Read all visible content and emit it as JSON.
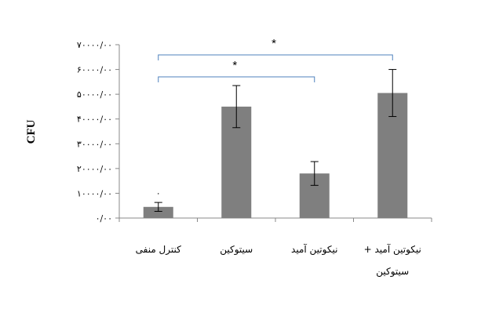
{
  "chart_data": {
    "type": "bar",
    "ylabel": "CFU",
    "ylim": [
      0,
      70000
    ],
    "y_ticks": [
      0,
      10000,
      20000,
      30000,
      40000,
      50000,
      60000,
      70000
    ],
    "y_tick_labels": [
      "۰/۰۰",
      "۱۰۰۰۰/۰۰",
      "۲۰۰۰۰/۰۰",
      "۳۰۰۰۰/۰۰",
      "۴۰۰۰۰/۰۰",
      "۵۰۰۰۰/۰۰",
      "۶۰۰۰۰/۰۰",
      "۷۰۰۰۰/۰۰"
    ],
    "categories": [
      "کنترل منفی",
      "سیتوکین",
      "نیکوتین آمید",
      "نیکوتین آمید + سیتوکین"
    ],
    "category_lines": [
      [
        "کنترل منفی"
      ],
      [
        "سیتوکین"
      ],
      [
        "نیکوتین آمید"
      ],
      [
        "نیکوتین آمید +",
        "سیتوکین"
      ]
    ],
    "values": [
      4500,
      45000,
      18000,
      50500
    ],
    "errors": [
      1800,
      8500,
      4800,
      9500
    ],
    "zero_bar_label": "۰",
    "bar_color": "#7f7f7f",
    "bracket_color": "#4f81bd",
    "significance": [
      {
        "from": 0,
        "to": 3,
        "label": "*"
      },
      {
        "from": 0,
        "to": 2,
        "label": "*"
      }
    ],
    "grid": false,
    "legend": "none"
  }
}
